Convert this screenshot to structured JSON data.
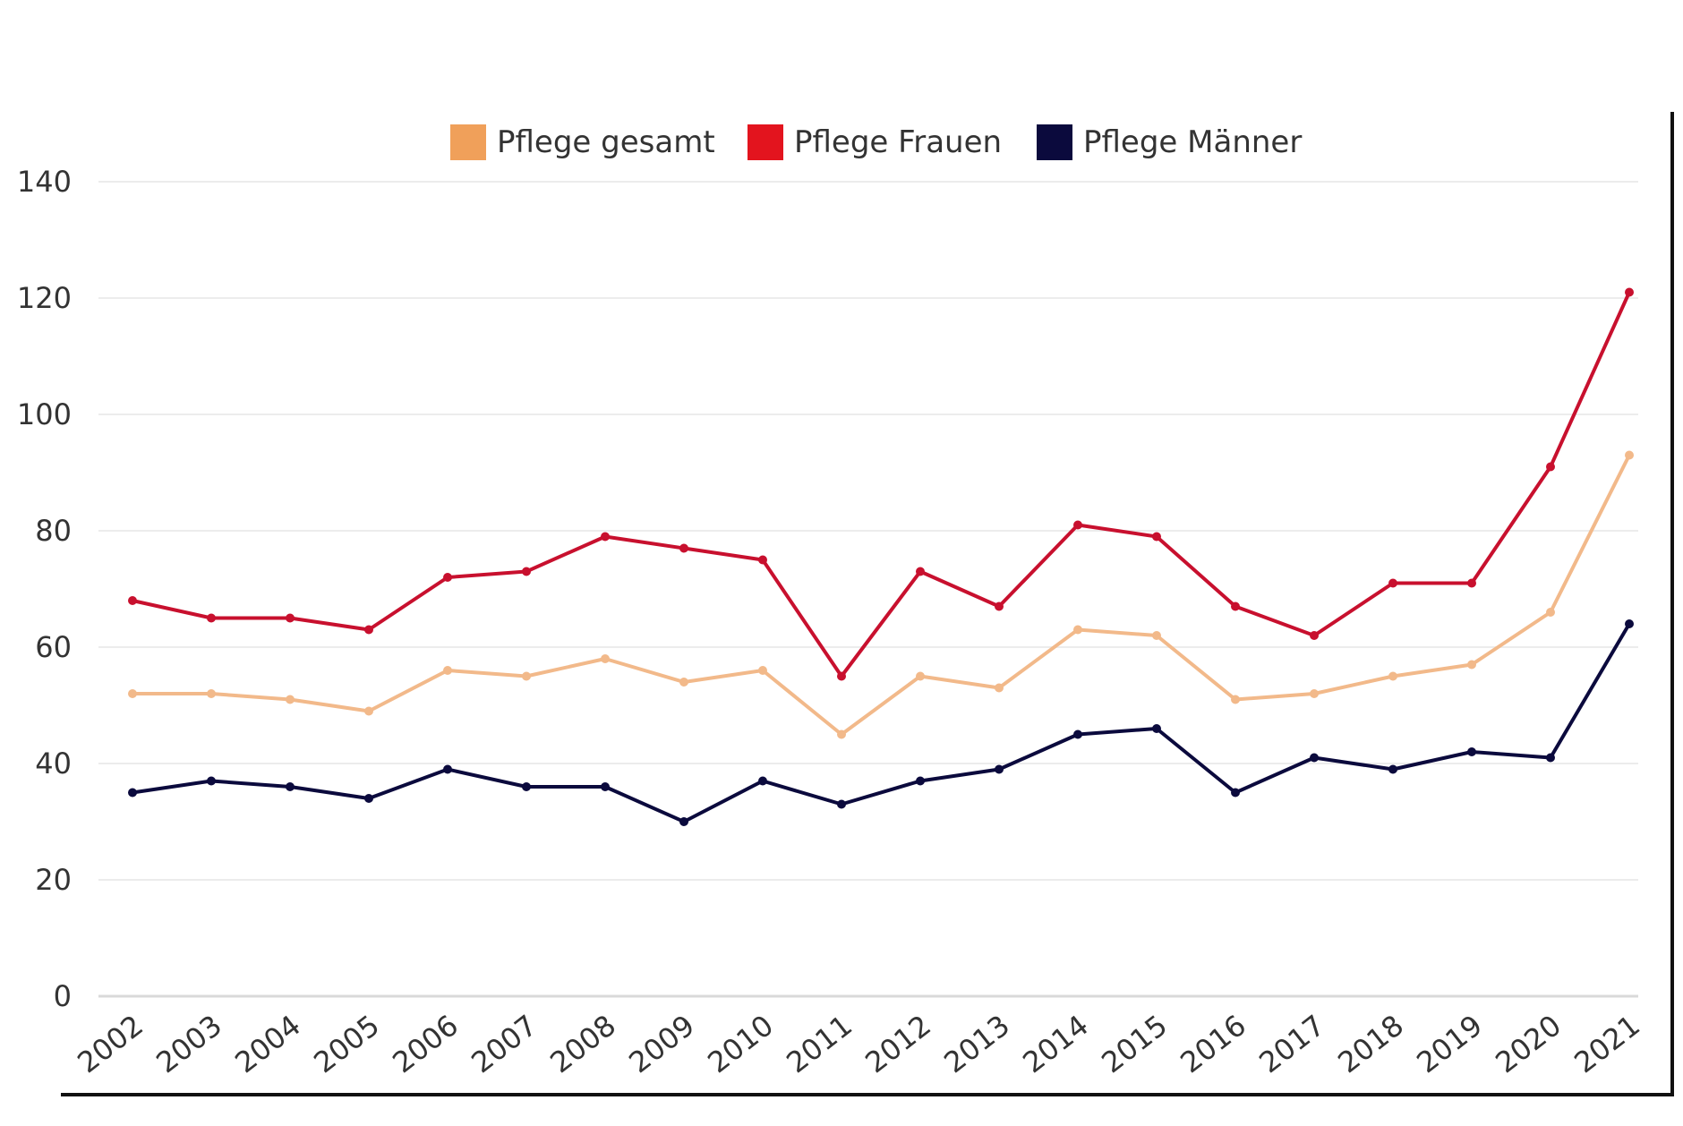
{
  "chart_data": {
    "type": "line",
    "title": "",
    "xlabel": "",
    "ylabel": "",
    "ylim": [
      0,
      140
    ],
    "y_ticks": [
      0,
      20,
      40,
      60,
      80,
      100,
      120,
      140
    ],
    "grid": true,
    "legend_position": "top-center",
    "categories": [
      "2002",
      "2003",
      "2004",
      "2005",
      "2006",
      "2007",
      "2008",
      "2009",
      "2010",
      "2011",
      "2012",
      "2013",
      "2014",
      "2015",
      "2016",
      "2017",
      "2018",
      "2019",
      "2020",
      "2021"
    ],
    "series": [
      {
        "name": "Pflege gesamt",
        "color": "#f0a05a",
        "line_color": "#f2b98a",
        "values": [
          52,
          52,
          51,
          49,
          56,
          55,
          58,
          54,
          56,
          45,
          55,
          53,
          63,
          62,
          51,
          52,
          55,
          57,
          66,
          93
        ]
      },
      {
        "name": "Pflege Frauen",
        "color": "#e3141e",
        "line_color": "#c8102e",
        "values": [
          68,
          65,
          65,
          63,
          72,
          73,
          79,
          77,
          75,
          55,
          73,
          67,
          81,
          79,
          67,
          62,
          71,
          71,
          91,
          121
        ]
      },
      {
        "name": "Pflege Männer",
        "color": "#0b0a3d",
        "line_color": "#0b0a3d",
        "values": [
          35,
          37,
          36,
          34,
          39,
          36,
          36,
          30,
          37,
          33,
          37,
          39,
          45,
          46,
          35,
          41,
          39,
          42,
          41,
          64
        ]
      }
    ]
  }
}
